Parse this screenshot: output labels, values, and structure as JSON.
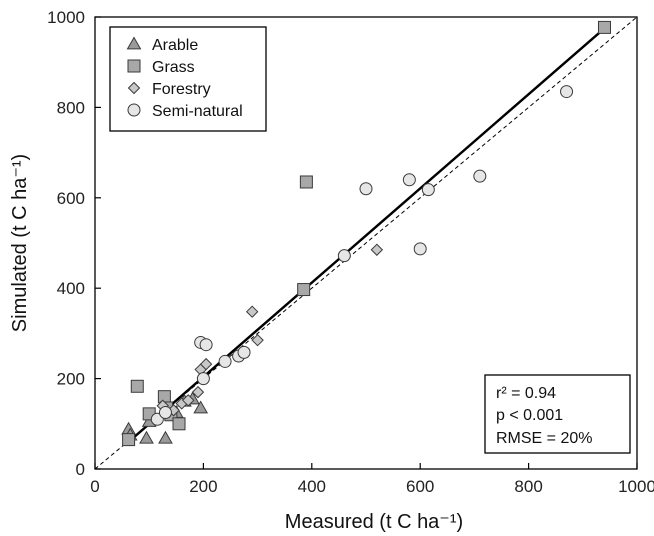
{
  "chart_data": {
    "type": "scatter",
    "xlabel": "Measured (t C ha⁻¹)",
    "ylabel": "Simulated (t C ha⁻¹)",
    "xlim": [
      0,
      1000
    ],
    "ylim": [
      0,
      1000
    ],
    "x_ticks": [
      "0",
      "200",
      "400",
      "600",
      "800",
      "1000"
    ],
    "y_ticks": [
      "0",
      "200",
      "400",
      "600",
      "800",
      "1000"
    ],
    "legend_position": "top-left",
    "grid": false,
    "series": [
      {
        "name": "Arable",
        "marker": "triangle",
        "color": "#9a9a9a",
        "points": [
          [
            62,
            88
          ],
          [
            65,
            75
          ],
          [
            95,
            68
          ],
          [
            100,
            105
          ],
          [
            130,
            68
          ],
          [
            150,
            125
          ],
          [
            165,
            150
          ],
          [
            180,
            155
          ],
          [
            195,
            135
          ]
        ]
      },
      {
        "name": "Grass",
        "marker": "square",
        "color": "#a8a8a8",
        "points": [
          [
            62,
            65
          ],
          [
            78,
            183
          ],
          [
            100,
            122
          ],
          [
            128,
            160
          ],
          [
            132,
            135
          ],
          [
            140,
            120
          ],
          [
            155,
            100
          ],
          [
            390,
            635
          ],
          [
            385,
            397
          ],
          [
            940,
            977
          ]
        ]
      },
      {
        "name": "Forestry",
        "marker": "diamond",
        "color": "#c8c8c8",
        "points": [
          [
            125,
            140
          ],
          [
            145,
            130
          ],
          [
            160,
            145
          ],
          [
            172,
            152
          ],
          [
            190,
            170
          ],
          [
            195,
            220
          ],
          [
            205,
            232
          ],
          [
            290,
            348
          ],
          [
            300,
            285
          ],
          [
            520,
            485
          ]
        ]
      },
      {
        "name": "Semi-natural",
        "marker": "circle",
        "color": "#e6e6e6",
        "points": [
          [
            115,
            110
          ],
          [
            130,
            125
          ],
          [
            200,
            200
          ],
          [
            195,
            280
          ],
          [
            205,
            275
          ],
          [
            240,
            238
          ],
          [
            265,
            250
          ],
          [
            275,
            258
          ],
          [
            460,
            472
          ],
          [
            500,
            620
          ],
          [
            580,
            640
          ],
          [
            600,
            487
          ],
          [
            615,
            618
          ],
          [
            710,
            648
          ],
          [
            870,
            835
          ]
        ]
      }
    ],
    "regression_line": {
      "x": [
        60,
        940
      ],
      "y": [
        58,
        975
      ]
    },
    "identity_line": {
      "x": [
        0,
        1000
      ],
      "y": [
        0,
        1000
      ]
    },
    "annotations": [
      "r² = 0.94",
      "p < 0.001",
      "RMSE = 20%"
    ]
  }
}
